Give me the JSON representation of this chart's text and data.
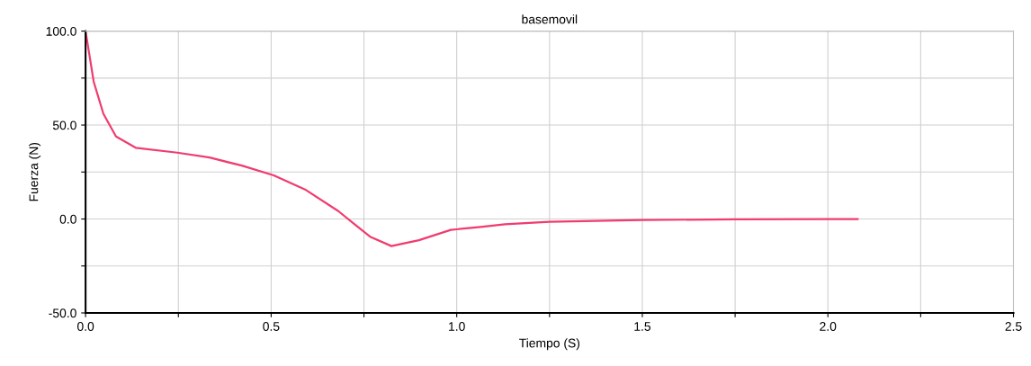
{
  "chart_data": {
    "type": "line",
    "title": "basemovil",
    "xlabel": "Tiempo (S)",
    "ylabel": "Fuerza (N)",
    "series": [
      {
        "color": "#f03c6e",
        "x": [
          0,
          0.022,
          0.048,
          0.082,
          0.135,
          0.247,
          0.334,
          0.421,
          0.507,
          0.594,
          0.681,
          0.724,
          0.768,
          0.824,
          0.898,
          0.984,
          1.07,
          1.13,
          1.25,
          1.5,
          1.75,
          2.016,
          2.08
        ],
        "values": [
          100,
          73,
          56,
          43.9,
          37.9,
          35.3,
          32.7,
          28.4,
          23.2,
          15.4,
          4.2,
          -2.7,
          -9.6,
          -14.4,
          -11.3,
          -5.8,
          -4.1,
          -2.8,
          -1.5,
          -0.5,
          -0.2,
          0,
          0
        ]
      }
    ],
    "xlim": [
      0,
      2.5
    ],
    "ylim": [
      -50,
      100
    ],
    "xticks": [
      {
        "value": 0,
        "label": "0.0"
      },
      {
        "value": 0.25,
        "label": null
      },
      {
        "value": 0.5,
        "label": "0.5"
      },
      {
        "value": 0.75,
        "label": null
      },
      {
        "value": 1,
        "label": "1.0"
      },
      {
        "value": 1.25,
        "label": null
      },
      {
        "value": 1.5,
        "label": "1.5"
      },
      {
        "value": 1.75,
        "label": null
      },
      {
        "value": 2,
        "label": "2.0"
      },
      {
        "value": 2.25,
        "label": null
      },
      {
        "value": 2.5,
        "label": "2.5"
      }
    ],
    "yticks": [
      {
        "value": -50,
        "label": "-50.0"
      },
      {
        "value": -25,
        "label": null
      },
      {
        "value": 0,
        "label": "0.0"
      },
      {
        "value": 25,
        "label": null
      },
      {
        "value": 50,
        "label": "50.0"
      },
      {
        "value": 75,
        "label": null
      },
      {
        "value": 100,
        "label": "100.0"
      }
    ],
    "grid": true,
    "marker": "none",
    "line_style": "solid"
  }
}
